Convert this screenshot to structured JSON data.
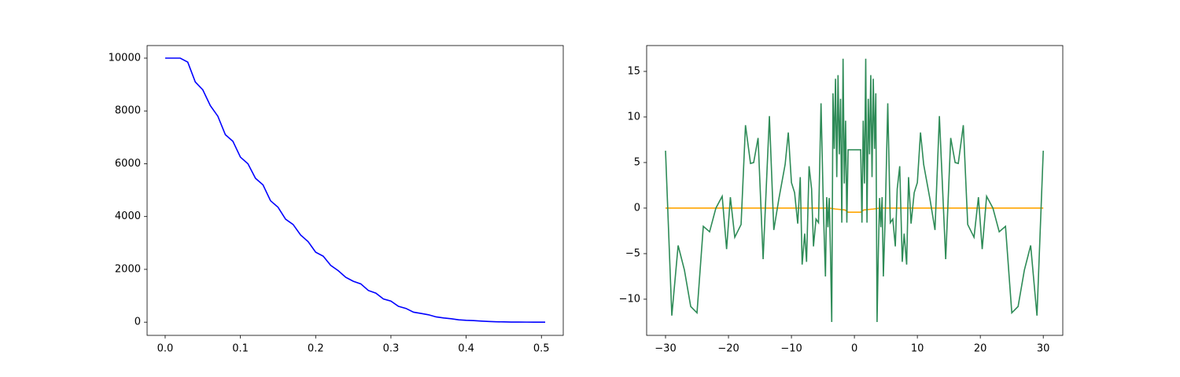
{
  "chart_data": [
    {
      "type": "line",
      "xlim": [
        -0.024,
        0.529
      ],
      "ylim": [
        -500,
        10476
      ],
      "xticks": [
        {
          "value": 0,
          "label": "0.0"
        },
        0.1,
        0.2,
        0.3,
        0.4,
        0.5
      ],
      "yticks": [
        0,
        2000,
        4000,
        6000,
        8000,
        10000
      ],
      "series": [
        {
          "color": "#0000ff",
          "x": [
            0,
            0.01,
            0.02,
            0.03,
            0.04,
            0.05,
            0.06,
            0.07,
            0.08,
            0.09,
            0.1,
            0.11,
            0.12,
            0.13,
            0.14,
            0.15,
            0.16,
            0.17,
            0.18,
            0.19,
            0.2,
            0.21,
            0.22,
            0.23,
            0.24,
            0.25,
            0.26,
            0.27,
            0.28,
            0.29,
            0.3,
            0.31,
            0.32,
            0.33,
            0.34,
            0.35,
            0.36,
            0.37,
            0.38,
            0.39,
            0.4,
            0.41,
            0.42,
            0.43,
            0.44,
            0.45,
            0.46,
            0.47,
            0.48,
            0.49,
            0.5,
            0.505
          ],
          "values": [
            10000,
            10000,
            10000,
            9850,
            9100,
            8800,
            8200,
            7800,
            7100,
            6850,
            6250,
            6000,
            5450,
            5200,
            4600,
            4350,
            3900,
            3700,
            3300,
            3050,
            2650,
            2500,
            2150,
            1950,
            1700,
            1550,
            1450,
            1200,
            1100,
            880,
            800,
            600,
            520,
            380,
            330,
            280,
            200,
            160,
            130,
            90,
            70,
            60,
            40,
            25,
            15,
            10,
            5,
            3,
            2,
            1,
            0,
            0
          ]
        }
      ]
    },
    {
      "type": "line",
      "xlim": [
        -33,
        33.1
      ],
      "ylim": [
        -13.97,
        17.84
      ],
      "xticks": [
        {
          "value": -30,
          "label": "−30"
        },
        {
          "value": -20,
          "label": "−20"
        },
        {
          "value": -10,
          "label": "−10"
        },
        0,
        10,
        20,
        30
      ],
      "yticks": [
        {
          "value": -10,
          "label": "−10"
        },
        {
          "value": -5,
          "label": "−5"
        },
        0,
        5,
        10,
        15
      ],
      "series": [
        {
          "color": "#ffa500",
          "x": [
            -30,
            -4,
            -3,
            -1.5,
            -1,
            1,
            1.5,
            3,
            4,
            30
          ],
          "values": [
            0,
            0,
            -0.1,
            -0.2,
            -0.45,
            -0.45,
            -0.2,
            -0.1,
            0,
            0
          ]
        },
        {
          "color": "#2e8b57",
          "x": [
            -30,
            -29,
            -28,
            -27,
            -26,
            -25,
            -24,
            -23,
            -22,
            -21,
            -20.3,
            -19.7,
            -19,
            -18,
            -17.3,
            -16.5,
            -16,
            -15.3,
            -14.5,
            -13.5,
            -12.8,
            -12,
            -11,
            -10.5,
            -10,
            -9.5,
            -9,
            -8.6,
            -8.3,
            -7.9,
            -7.6,
            -7.2,
            -6.8,
            -6.5,
            -6.1,
            -5.7,
            -5.3,
            -4.9,
            -4.6,
            -4.4,
            -4.2,
            -4,
            -3.8,
            -3.6,
            -3.4,
            -3.2,
            -3,
            -2.8,
            -2.6,
            -2.4,
            -2.2,
            -2,
            -1.8,
            -1.6,
            -1.4,
            -1.2,
            -1,
            1,
            1.2,
            1.4,
            1.6,
            1.8,
            2,
            2.2,
            2.4,
            2.6,
            2.8,
            3,
            3.2,
            3.4,
            3.6,
            3.8,
            4,
            4.2,
            4.4,
            4.6,
            4.9,
            5.3,
            5.7,
            6.1,
            6.5,
            6.8,
            7.2,
            7.6,
            7.9,
            8.3,
            8.6,
            9,
            9.5,
            10,
            10.5,
            11,
            12,
            12.8,
            13.5,
            14.5,
            15.3,
            16,
            16.5,
            17.3,
            18,
            19,
            19.7,
            20.3,
            21,
            22,
            23,
            24,
            25,
            26,
            27,
            28,
            29,
            30
          ],
          "values": [
            6.3,
            -11.8,
            -4.1,
            -6.8,
            -10.8,
            -11.5,
            -2,
            -2.6,
            0,
            1.3,
            -4.5,
            1.2,
            -3.2,
            -1.8,
            9.1,
            4.9,
            5,
            7.7,
            -5.6,
            10.1,
            -2.4,
            1,
            4.8,
            8.3,
            2.8,
            1.7,
            -1.7,
            3.4,
            -6.2,
            -2.8,
            -5.9,
            4.6,
            2.1,
            -4.2,
            -1.2,
            -1.6,
            11.5,
            -0.8,
            -7.5,
            1.2,
            -2.1,
            1.1,
            -4.9,
            -12.5,
            12.6,
            6.5,
            14.2,
            3.4,
            14.6,
            5.9,
            12,
            -1.6,
            16.4,
            2.7,
            9.6,
            -1.6,
            6.4,
            6.4,
            -1.6,
            9.6,
            2.7,
            16.4,
            -1.6,
            12,
            5.9,
            14.6,
            3.4,
            14.2,
            6.5,
            12.6,
            -12.5,
            -4.9,
            1.1,
            -2.1,
            1.2,
            -7.5,
            -0.8,
            11.5,
            -1.6,
            -1.2,
            -4.2,
            2.1,
            4.6,
            -5.9,
            -2.8,
            -6.2,
            3.4,
            -1.7,
            1.7,
            2.8,
            8.3,
            4.8,
            1,
            -2.4,
            10.1,
            -5.6,
            7.7,
            5,
            4.9,
            9.1,
            -1.8,
            -3.2,
            1.2,
            -4.5,
            1.3,
            0,
            -2.6,
            -2,
            -11.5,
            -10.8,
            -6.8,
            -4.1,
            -11.8,
            6.3
          ]
        }
      ]
    }
  ]
}
